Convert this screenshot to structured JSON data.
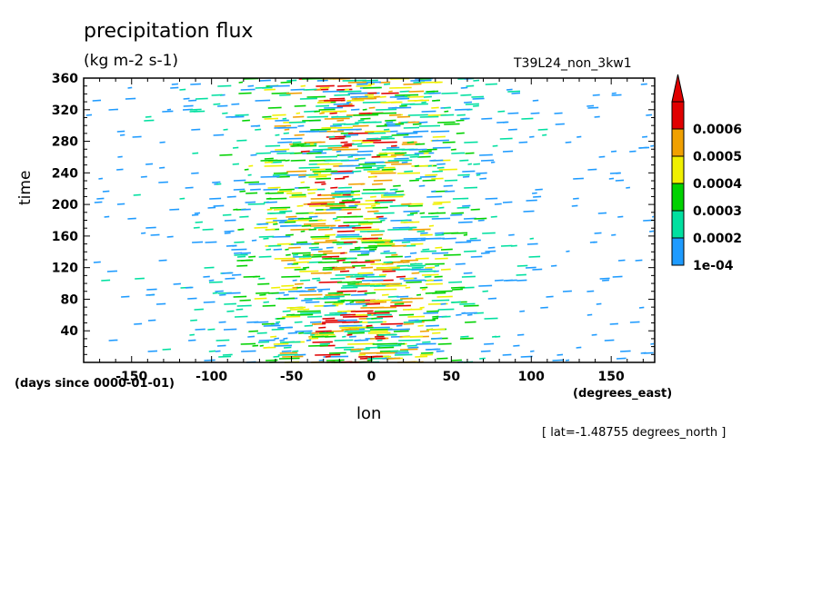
{
  "chart_data": {
    "type": "heatmap",
    "title": "precipitation flux",
    "units": "(kg m-2 s-1)",
    "run_label": "T39L24_non_3kw1",
    "xlabel": "lon",
    "xlabel_units": "(degrees_east)",
    "ylabel": "time",
    "ylabel_units": "(days since 0000-01-01)",
    "annotation": "[ lat=-1.48755 degrees_north ]",
    "xlim": [
      -180,
      177.2
    ],
    "ylim": [
      0,
      360
    ],
    "x_ticks": [
      -150,
      -100,
      -50,
      0,
      50,
      100,
      150
    ],
    "y_ticks": [
      40,
      80,
      120,
      160,
      200,
      240,
      280,
      320,
      360
    ],
    "grid": false,
    "legend": "colorbar-right",
    "levels": [
      {
        "label": "1e-04",
        "value": 0.0001,
        "color": "#1e9bff"
      },
      {
        "label": "0.0002",
        "value": 0.0002,
        "color": "#00e0a0"
      },
      {
        "label": "0.0003",
        "value": 0.0003,
        "color": "#00d200"
      },
      {
        "label": "0.0004",
        "value": 0.0004,
        "color": "#f0f000"
      },
      {
        "label": "0.0005",
        "value": 0.0005,
        "color": "#f0a000"
      },
      {
        "label": "0.0006",
        "value": 0.0006,
        "color": "#e00000"
      }
    ],
    "above_max_color": "#e00000",
    "intensity_profile": {
      "description_of_field": "eastward-propagating streaks concentrated between lon -130 and 80",
      "centre_lon": -15,
      "width_lon": 65
    }
  }
}
